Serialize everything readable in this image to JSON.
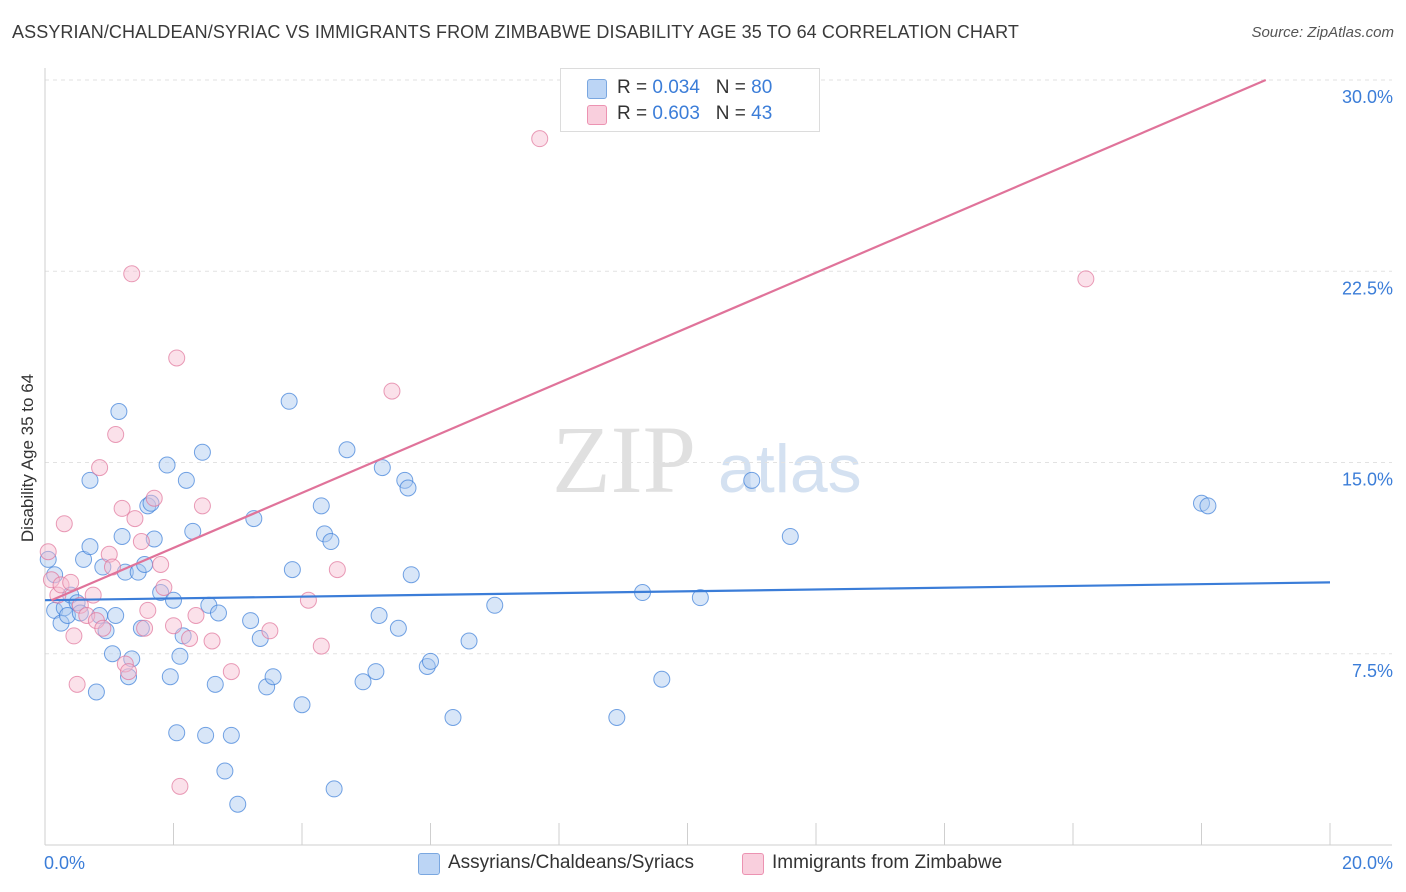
{
  "title": "ASSYRIAN/CHALDEAN/SYRIAC VS IMMIGRANTS FROM ZIMBABWE DISABILITY AGE 35 TO 64 CORRELATION CHART",
  "source": "Source: ZipAtlas.com",
  "watermark": {
    "zip": "ZIP",
    "atlas": "atlas"
  },
  "stats": [
    {
      "r_label": "R =",
      "r_value": "0.034",
      "n_label": "N =",
      "n_value": "80",
      "color": "#a8c8f0"
    },
    {
      "r_label": "R =",
      "r_value": "0.603",
      "n_label": "N =",
      "n_value": "43",
      "color": "#f6bcd0"
    }
  ],
  "legend": [
    {
      "label": "Assyrians/Chaldeans/Syriacs",
      "color": "#a8c8f0"
    },
    {
      "label": "Immigrants from Zimbabwe",
      "color": "#f6bcd0"
    }
  ],
  "chart_data": {
    "type": "scatter",
    "ylabel": "Disability Age 35 to 64",
    "xlim": [
      0,
      20
    ],
    "ylim": [
      0,
      30
    ],
    "x_tick_labels": [
      {
        "value": 0,
        "label": "0.0%"
      },
      {
        "value": 20,
        "label": "20.0%"
      }
    ],
    "y_tick_labels": [
      {
        "value": 7.5,
        "label": "7.5%"
      },
      {
        "value": 15,
        "label": "15.0%"
      },
      {
        "value": 22.5,
        "label": "22.5%"
      },
      {
        "value": 30,
        "label": "30.0%"
      }
    ],
    "x_minor_ticks": [
      0,
      2,
      4,
      6,
      8,
      10,
      12,
      14,
      16,
      18,
      20
    ],
    "grid": "dashed-horizontal",
    "series": [
      {
        "name": "Assyrians/Chaldeans/Syriacs",
        "color": "#3b7dd8",
        "fill": "#a8c8f0",
        "trendline": {
          "x": [
            0,
            20
          ],
          "y": [
            9.6,
            10.3
          ]
        },
        "points": [
          [
            0.05,
            11.2
          ],
          [
            0.15,
            10.6
          ],
          [
            0.15,
            9.2
          ],
          [
            0.25,
            8.7
          ],
          [
            0.3,
            9.3
          ],
          [
            0.35,
            9.0
          ],
          [
            0.4,
            9.8
          ],
          [
            0.5,
            9.5
          ],
          [
            0.55,
            9.1
          ],
          [
            0.6,
            11.2
          ],
          [
            0.7,
            11.7
          ],
          [
            0.7,
            14.3
          ],
          [
            0.8,
            6.0
          ],
          [
            0.85,
            9.0
          ],
          [
            0.9,
            10.9
          ],
          [
            0.95,
            8.4
          ],
          [
            1.05,
            7.5
          ],
          [
            1.1,
            9.0
          ],
          [
            1.15,
            17.0
          ],
          [
            1.2,
            12.1
          ],
          [
            1.25,
            10.7
          ],
          [
            1.3,
            6.6
          ],
          [
            1.35,
            7.3
          ],
          [
            1.45,
            10.7
          ],
          [
            1.5,
            8.5
          ],
          [
            1.55,
            11.0
          ],
          [
            1.6,
            13.3
          ],
          [
            1.65,
            13.4
          ],
          [
            1.7,
            12.0
          ],
          [
            1.8,
            9.9
          ],
          [
            1.9,
            14.9
          ],
          [
            1.95,
            6.6
          ],
          [
            2.05,
            4.4
          ],
          [
            2.1,
            7.4
          ],
          [
            2.15,
            8.2
          ],
          [
            2.2,
            14.3
          ],
          [
            2.3,
            12.3
          ],
          [
            2.45,
            15.4
          ],
          [
            2.5,
            4.3
          ],
          [
            2.55,
            9.4
          ],
          [
            2.65,
            6.3
          ],
          [
            2.7,
            9.1
          ],
          [
            2.8,
            2.9
          ],
          [
            2.9,
            4.3
          ],
          [
            3.0,
            1.6
          ],
          [
            3.2,
            8.8
          ],
          [
            3.25,
            12.8
          ],
          [
            3.35,
            8.1
          ],
          [
            3.45,
            6.2
          ],
          [
            3.55,
            6.6
          ],
          [
            3.8,
            17.4
          ],
          [
            3.85,
            10.8
          ],
          [
            4.0,
            5.5
          ],
          [
            4.3,
            13.3
          ],
          [
            4.35,
            12.2
          ],
          [
            4.45,
            11.9
          ],
          [
            4.5,
            2.2
          ],
          [
            4.7,
            15.5
          ],
          [
            4.95,
            6.4
          ],
          [
            5.15,
            6.8
          ],
          [
            5.2,
            9.0
          ],
          [
            5.25,
            14.8
          ],
          [
            5.5,
            8.5
          ],
          [
            5.6,
            14.3
          ],
          [
            5.65,
            14.0
          ],
          [
            5.7,
            10.6
          ],
          [
            5.95,
            7.0
          ],
          [
            6.0,
            7.2
          ],
          [
            6.35,
            5.0
          ],
          [
            6.6,
            8.0
          ],
          [
            7.0,
            9.4
          ],
          [
            8.9,
            5.0
          ],
          [
            9.3,
            9.9
          ],
          [
            9.6,
            6.5
          ],
          [
            10.2,
            9.7
          ],
          [
            11.0,
            14.3
          ],
          [
            11.6,
            12.1
          ],
          [
            18.0,
            13.4
          ],
          [
            18.1,
            13.3
          ],
          [
            2.0,
            9.6
          ]
        ]
      },
      {
        "name": "Immigrants from Zimbabwe",
        "color": "#e0739a",
        "fill": "#f6bcd0",
        "trendline": {
          "x": [
            0.1,
            19.0
          ],
          "y": [
            9.6,
            30.0
          ]
        },
        "points": [
          [
            0.05,
            11.5
          ],
          [
            0.1,
            10.4
          ],
          [
            0.2,
            9.8
          ],
          [
            0.25,
            10.2
          ],
          [
            0.3,
            12.6
          ],
          [
            0.4,
            10.3
          ],
          [
            0.45,
            8.2
          ],
          [
            0.5,
            6.3
          ],
          [
            0.55,
            9.4
          ],
          [
            0.65,
            9.0
          ],
          [
            0.75,
            9.8
          ],
          [
            0.8,
            8.8
          ],
          [
            0.85,
            14.8
          ],
          [
            0.9,
            8.5
          ],
          [
            1.0,
            11.4
          ],
          [
            1.05,
            10.9
          ],
          [
            1.1,
            16.1
          ],
          [
            1.2,
            13.2
          ],
          [
            1.25,
            7.1
          ],
          [
            1.3,
            6.8
          ],
          [
            1.35,
            22.4
          ],
          [
            1.4,
            12.8
          ],
          [
            1.5,
            11.9
          ],
          [
            1.55,
            8.5
          ],
          [
            1.6,
            9.2
          ],
          [
            1.7,
            13.6
          ],
          [
            1.85,
            10.1
          ],
          [
            2.0,
            8.6
          ],
          [
            2.05,
            19.1
          ],
          [
            2.1,
            2.3
          ],
          [
            2.25,
            8.1
          ],
          [
            2.35,
            9.0
          ],
          [
            2.45,
            13.3
          ],
          [
            2.6,
            8.0
          ],
          [
            2.9,
            6.8
          ],
          [
            3.5,
            8.4
          ],
          [
            4.1,
            9.6
          ],
          [
            4.3,
            7.8
          ],
          [
            4.55,
            10.8
          ],
          [
            5.4,
            17.8
          ],
          [
            7.7,
            27.7
          ],
          [
            16.2,
            22.2
          ],
          [
            1.8,
            11.0
          ]
        ]
      }
    ]
  }
}
